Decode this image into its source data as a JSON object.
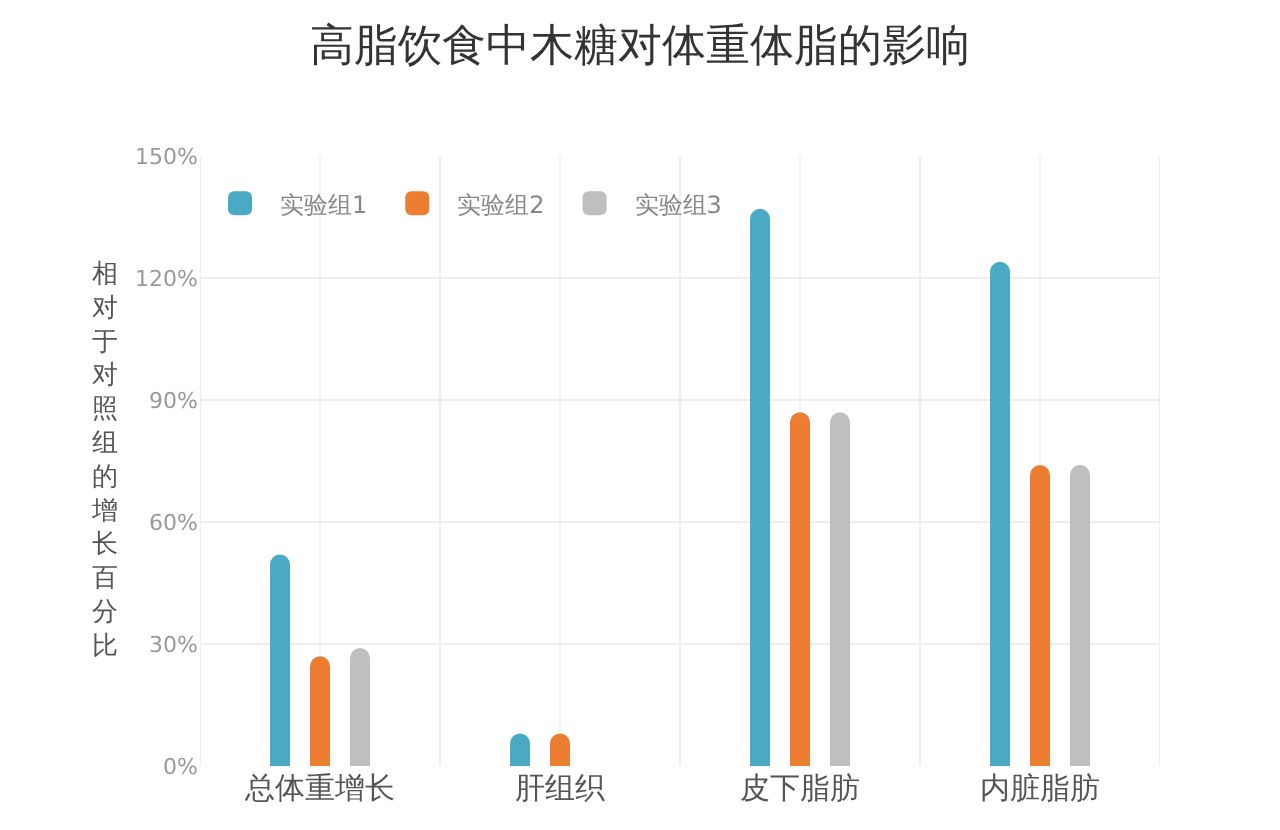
{
  "chart_data": {
    "type": "bar",
    "title": "高脂饮食中木糖对体重体脂的影响",
    "ylabel": "相对于对照组的增长百分比",
    "categories": [
      "总体重增长",
      "肝组织",
      "皮下脂肪",
      "内脏脂肪"
    ],
    "series": [
      {
        "name": "实验组1",
        "color": "#4aaac4",
        "values": [
          52,
          8,
          137,
          124
        ]
      },
      {
        "name": "实验组2",
        "color": "#ed7d31",
        "values": [
          27,
          8,
          87,
          74
        ]
      },
      {
        "name": "实验组3",
        "color": "#bfbfbf",
        "values": [
          29,
          0,
          87,
          74
        ]
      }
    ],
    "ylim": [
      0,
      150
    ],
    "yticks": [
      {
        "value": 0,
        "label": "0%"
      },
      {
        "value": 30,
        "label": "30%"
      },
      {
        "value": 60,
        "label": "60%"
      },
      {
        "value": 90,
        "label": "90%"
      },
      {
        "value": 120,
        "label": "120%"
      },
      {
        "value": 150,
        "label": "150%"
      }
    ],
    "grid": true,
    "legend": "top left"
  }
}
